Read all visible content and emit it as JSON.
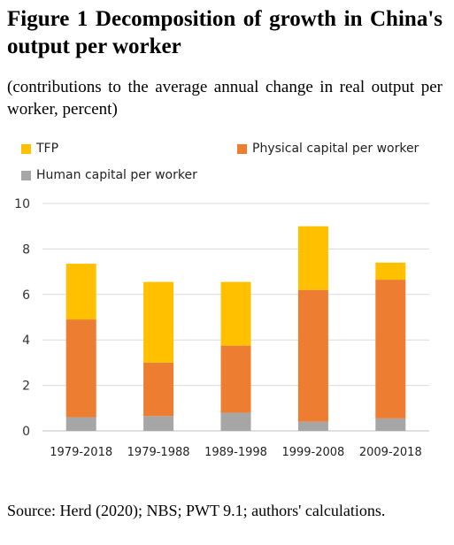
{
  "figure": {
    "title": "Figure 1 Decomposition of growth in China's output per worker",
    "subtitle": "(contributions to the average annual change in real output per worker, percent)",
    "source": "Source: Herd (2020); NBS; PWT 9.1; authors' calculations."
  },
  "chart_data": {
    "type": "bar",
    "stacked": true,
    "categories": [
      "1979-2018",
      "1979-1988",
      "1989-1998",
      "1999-2008",
      "2009-2018"
    ],
    "series": [
      {
        "name": "Human capital per worker",
        "color": "#a6a6a6",
        "values": [
          0.6,
          0.65,
          0.8,
          0.4,
          0.55
        ]
      },
      {
        "name": "Physical capital per worker",
        "color": "#ed7d31",
        "values": [
          4.3,
          2.35,
          2.95,
          5.8,
          6.1
        ]
      },
      {
        "name": "TFP",
        "color": "#ffc000",
        "values": [
          2.45,
          3.55,
          2.8,
          2.8,
          0.75
        ]
      }
    ],
    "ylim": [
      0,
      10
    ],
    "yticks": [
      0,
      2,
      4,
      6,
      8,
      10
    ],
    "grid": true,
    "legend_position": "top"
  }
}
